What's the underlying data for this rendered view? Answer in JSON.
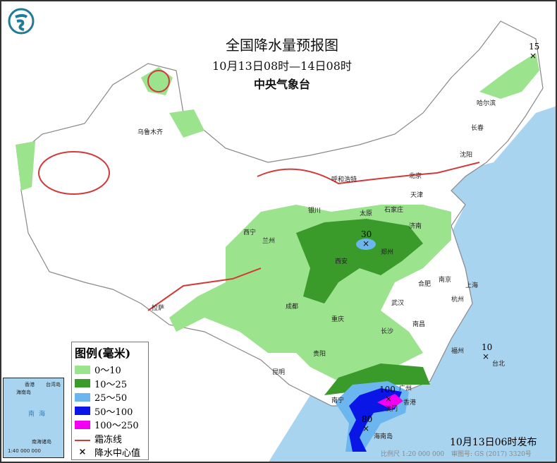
{
  "header": {
    "title": "全国降水量预报图",
    "period": "10月13日08时—14日08时",
    "issuer": "中央气象台",
    "logo": "cma-dragon-logo"
  },
  "legend": {
    "title": "图例(毫米)",
    "items": [
      {
        "label": "0～10",
        "color": "#9be38c"
      },
      {
        "label": "10～25",
        "color": "#3a9a2a"
      },
      {
        "label": "25～50",
        "color": "#6cb6f0"
      },
      {
        "label": "50～100",
        "color": "#0a16e6"
      },
      {
        "label": "100～250",
        "color": "#f200f2"
      },
      {
        "label": "霜冻线",
        "color": "#d23a3a"
      },
      {
        "label": "降水中心值",
        "symbol": "×"
      }
    ]
  },
  "centers": [
    {
      "value": "15"
    },
    {
      "value": "30"
    },
    {
      "value": "10"
    },
    {
      "value": "100"
    },
    {
      "value": "80"
    }
  ],
  "cities": [
    "乌鲁木齐",
    "哈尔滨",
    "长春",
    "沈阳",
    "北京",
    "天津",
    "呼和浩特",
    "石家庄",
    "太原",
    "济南",
    "银川",
    "西宁",
    "兰州",
    "郑州",
    "西安",
    "合肥",
    "南京",
    "上海",
    "杭州",
    "武汉",
    "成都",
    "重庆",
    "长沙",
    "南昌",
    "拉萨",
    "贵阳",
    "昆明",
    "福州",
    "台北",
    "南宁",
    "广州",
    "澳门",
    "香港",
    "海南岛"
  ],
  "inset": {
    "labels": [
      "香港",
      "海南岛",
      "台湾岛",
      "南海",
      "南海诸岛",
      "1:40 000 000"
    ]
  },
  "footer": {
    "published": "10月13日06时发布",
    "scale": "比例尺 1:20 000 000",
    "review": "审图号: GS (2017) 3320号"
  },
  "colors": {
    "sea": "#a9d4ef",
    "land": "#ffffff",
    "border": "#999999"
  }
}
